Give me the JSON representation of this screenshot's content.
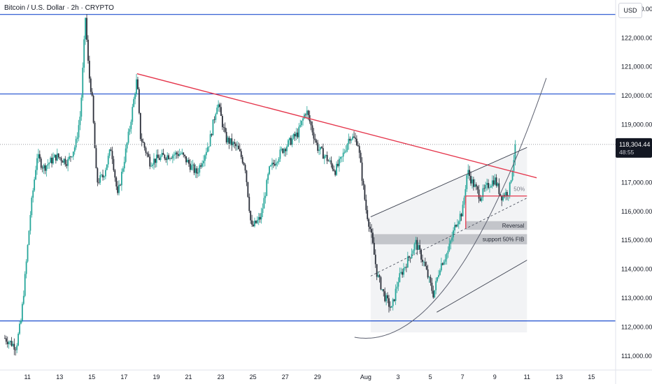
{
  "header": {
    "title": "Bitcoin / U.S. Dollar · 2h · CRYPTO",
    "currency_button": "USD"
  },
  "price_tag": {
    "price": "118,304.44",
    "countdown": "48:55"
  },
  "colors": {
    "up": "#26a69a",
    "down": "#2a2e39",
    "level": "#1f4fcf",
    "trend": "#e5364c",
    "tag": "#131722"
  },
  "chart_data": {
    "type": "candlestick",
    "title": "Bitcoin / U.S. Dollar · 2h · CRYPTO",
    "xlabel": "",
    "ylabel": "",
    "ylim": [
      110500,
      123300
    ],
    "y_ticks": [
      "111,000.00",
      "112,000.00",
      "113,000.00",
      "114,000.00",
      "115,000.00",
      "116,000.00",
      "117,000.00",
      "118,000.00",
      "119,000.00",
      "120,000.00",
      "121,000.00",
      "122,000.00",
      "123,000.00"
    ],
    "y_tick_values": [
      111000,
      112000,
      113000,
      114000,
      115000,
      116000,
      117000,
      118000,
      119000,
      120000,
      121000,
      122000,
      123000
    ],
    "x_ticks": [
      "11",
      "13",
      "15",
      "17",
      "19",
      "21",
      "23",
      "25",
      "27",
      "29",
      "Aug",
      "3",
      "5",
      "7",
      "9",
      "11",
      "13",
      "15"
    ],
    "x_tick_days": [
      11,
      13,
      15,
      17,
      19,
      21,
      23,
      25,
      27,
      29,
      32,
      34,
      36,
      38,
      40,
      42,
      44,
      46
    ],
    "xlim_days": [
      9.3,
      47.5
    ],
    "last_price": 118304.44,
    "close_path": [
      [
        9.6,
        111600
      ],
      [
        10.3,
        111300
      ],
      [
        10.6,
        112200
      ],
      [
        10.9,
        114000
      ],
      [
        11.2,
        116000
      ],
      [
        11.6,
        117900
      ],
      [
        12.0,
        117500
      ],
      [
        12.8,
        117900
      ],
      [
        13.5,
        117700
      ],
      [
        14.0,
        118300
      ],
      [
        14.3,
        119400
      ],
      [
        14.6,
        122700
      ],
      [
        14.8,
        120800
      ],
      [
        15.0,
        120000
      ],
      [
        15.3,
        117000
      ],
      [
        15.7,
        117200
      ],
      [
        16.2,
        118200
      ],
      [
        16.6,
        116500
      ],
      [
        17.3,
        118700
      ],
      [
        17.8,
        120600
      ],
      [
        18.0,
        118600
      ],
      [
        18.6,
        117700
      ],
      [
        19.5,
        117900
      ],
      [
        20.5,
        118000
      ],
      [
        21.5,
        117300
      ],
      [
        22.3,
        118400
      ],
      [
        22.8,
        119800
      ],
      [
        23.3,
        118500
      ],
      [
        24.0,
        118200
      ],
      [
        24.5,
        117600
      ],
      [
        24.9,
        115400
      ],
      [
        25.5,
        115800
      ],
      [
        26.0,
        117400
      ],
      [
        26.8,
        118100
      ],
      [
        27.8,
        118700
      ],
      [
        28.3,
        119500
      ],
      [
        29.0,
        118200
      ],
      [
        29.6,
        117800
      ],
      [
        30.1,
        117400
      ],
      [
        30.5,
        117800
      ],
      [
        31.0,
        118600
      ],
      [
        31.5,
        118400
      ],
      [
        32.0,
        116100
      ],
      [
        32.3,
        115300
      ],
      [
        32.7,
        113800
      ],
      [
        33.2,
        113000
      ],
      [
        33.6,
        112600
      ],
      [
        34.0,
        113600
      ],
      [
        34.6,
        114300
      ],
      [
        35.1,
        114900
      ],
      [
        35.6,
        114200
      ],
      [
        36.2,
        113100
      ],
      [
        36.6,
        114100
      ],
      [
        37.1,
        114600
      ],
      [
        37.6,
        115600
      ],
      [
        38.0,
        116000
      ],
      [
        38.3,
        117400
      ],
      [
        38.6,
        117000
      ],
      [
        39.1,
        116500
      ],
      [
        39.6,
        116900
      ],
      [
        40.0,
        117100
      ],
      [
        40.4,
        116500
      ],
      [
        40.9,
        116700
      ],
      [
        41.3,
        118300
      ]
    ],
    "volatility_seed": 7,
    "annotations": {
      "horizontal_levels": [
        122800,
        120050,
        112200
      ],
      "descending_trendline": [
        [
          17.8,
          120750
        ],
        [
          42.6,
          117150
        ]
      ],
      "channel_upper": [
        [
          32.3,
          115800
        ],
        [
          42.0,
          118200
        ]
      ],
      "channel_lower": [
        [
          36.4,
          112500
        ],
        [
          42.0,
          114300
        ]
      ],
      "channel_mid_dashed": [
        [
          32.3,
          113750
        ],
        [
          42.0,
          116450
        ]
      ],
      "fib_50_line": {
        "from_day": 38.2,
        "to_day": 42.0,
        "price": 116520,
        "label": "50%"
      },
      "fib_vertical": {
        "day": 38.2,
        "from": 116520,
        "to": 115400
      },
      "zones": [
        {
          "label": "Reversal",
          "from_day": 38.2,
          "to_day": 42.0,
          "top": 115650,
          "bottom": 115350
        },
        {
          "label": "support 50% FIB",
          "from_day": 32.3,
          "to_day": 42.0,
          "top": 115200,
          "bottom": 114850
        }
      ],
      "channel_fill": [
        [
          32.3,
          115800
        ],
        [
          42.0,
          118200
        ],
        [
          42.0,
          111800
        ],
        [
          32.3,
          111800
        ]
      ],
      "parabolic_curve": {
        "from_day": 31.3,
        "to_day": 43.2,
        "vertex_day": 32.0,
        "vertex_price": 111600,
        "end_price": 120600
      }
    }
  }
}
